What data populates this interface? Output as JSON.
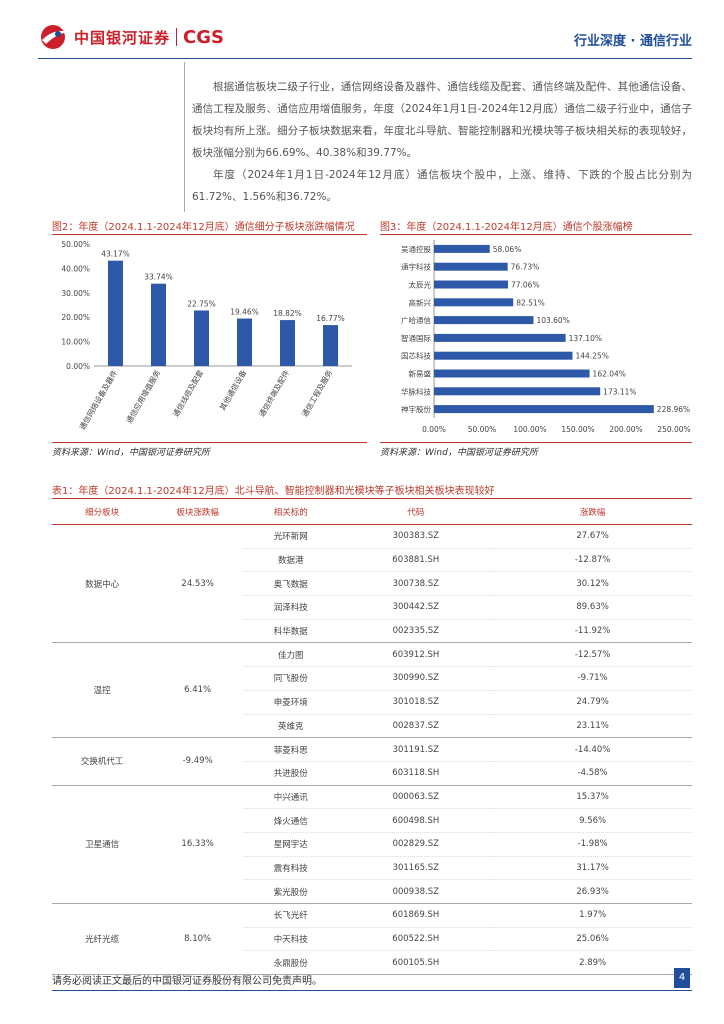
{
  "header": {
    "logo_cn": "中国银河证券",
    "logo_en": "CGS",
    "section": "行业深度 · 通信行业"
  },
  "paragraphs": [
    "根据通信板块二级子行业，通信网络设备及器件、通信线缆及配套、通信终端及配件、其他通信设备、通信工程及服务、通信应用增值服务，年度（2024年1月1日-2024年12月底）通信二级子行业中，通信子板块均有所上涨。细分子板块数据来看，年度北斗导航、智能控制器和光模块等子板块相关标的表现较好，板块涨幅分别为66.69%、40.38%和39.77%。",
    "年度（2024年1月1日-2024年12月底）通信板块个股中，上涨、维持、下跌的个股占比分别为61.72%、1.56%和36.72%。"
  ],
  "figure2": {
    "title": "图2：年度（2024.1.1-2024年12月底）通信细分子板块涨跌幅情况",
    "source": "资料来源：Wind，中国银河证券研究所"
  },
  "figure3": {
    "title": "图3：年度（2024.1.1-2024年12月底）通信个股涨幅榜",
    "source": "资料来源：Wind，中国银河证券研究所"
  },
  "chart_data": [
    {
      "type": "bar",
      "categories": [
        "通信网络设备及器件",
        "通信应用增值服务",
        "通信线缆及配套",
        "其他通信设备",
        "通信终端及配件",
        "通信工程及服务"
      ],
      "values": [
        43.17,
        33.74,
        22.75,
        19.46,
        18.82,
        16.77
      ],
      "value_labels": [
        "43.17%",
        "33.74%",
        "22.75%",
        "19.46%",
        "18.82%",
        "16.77%"
      ],
      "yticks": [
        "0.00%",
        "10.00%",
        "20.00%",
        "30.00%",
        "40.00%",
        "50.00%"
      ],
      "ylim": [
        0,
        50
      ],
      "color": "#2e59a8"
    },
    {
      "type": "bar",
      "orientation": "horizontal",
      "categories": [
        "吴通控股",
        "通宇科技",
        "太辰光",
        "高新兴",
        "广哈通信",
        "智通国际",
        "国芯科技",
        "新易盛",
        "华脉科技",
        "神宇股份"
      ],
      "values": [
        58.06,
        76.73,
        77.06,
        82.51,
        103.6,
        137.1,
        144.25,
        162.04,
        173.11,
        228.96
      ],
      "value_labels": [
        "58.06%",
        "76.73%",
        "77.06%",
        "82.51%",
        "103.60%",
        "137.10%",
        "144.25%",
        "162.04%",
        "173.11%",
        "228.96%"
      ],
      "xticks": [
        "0.00%",
        "50.00%",
        "100.00%",
        "150.00%",
        "200.00%",
        "250.00%"
      ],
      "xlim": [
        0,
        250
      ],
      "color": "#2e59a8"
    }
  ],
  "table": {
    "title": "表1：年度（2024.1.1-2024年12月底）北斗导航、智能控制器和光模块等子板块相关板块表现较好",
    "headers": [
      "细分板块",
      "板块涨跌幅",
      "相关标的",
      "代码",
      "涨跌幅"
    ],
    "groups": [
      {
        "name": "数据中心",
        "change": "24.53%",
        "rows": [
          [
            "光环新网",
            "300383.SZ",
            "27.67%"
          ],
          [
            "数据港",
            "603881.SH",
            "-12.87%"
          ],
          [
            "奥飞数据",
            "300738.SZ",
            "30.12%"
          ],
          [
            "润泽科技",
            "300442.SZ",
            "89.63%"
          ],
          [
            "科华数据",
            "002335.SZ",
            "-11.92%"
          ]
        ]
      },
      {
        "name": "温控",
        "change": "6.41%",
        "rows": [
          [
            "佳力图",
            "603912.SH",
            "-12.57%"
          ],
          [
            "同飞股份",
            "300990.SZ",
            "-9.71%"
          ],
          [
            "申菱环境",
            "301018.SZ",
            "24.79%"
          ],
          [
            "英维克",
            "002837.SZ",
            "23.11%"
          ]
        ]
      },
      {
        "name": "交换机代工",
        "change": "-9.49%",
        "rows": [
          [
            "菲菱科思",
            "301191.SZ",
            "-14.40%"
          ],
          [
            "共进股份",
            "603118.SH",
            "-4.58%"
          ]
        ]
      },
      {
        "name": "卫星通信",
        "change": "16.33%",
        "rows": [
          [
            "中兴通讯",
            "000063.SZ",
            "15.37%"
          ],
          [
            "烽火通信",
            "600498.SH",
            "9.56%"
          ],
          [
            "星网宇达",
            "002829.SZ",
            "-1.98%"
          ],
          [
            "震有科技",
            "301165.SZ",
            "31.17%"
          ],
          [
            "紫光股份",
            "000938.SZ",
            "26.93%"
          ]
        ]
      },
      {
        "name": "光纤光缆",
        "change": "8.10%",
        "rows": [
          [
            "长飞光纤",
            "601869.SH",
            "1.97%"
          ],
          [
            "中天科技",
            "600522.SH",
            "25.06%"
          ],
          [
            "永鼎股份",
            "600105.SH",
            "2.89%"
          ]
        ]
      }
    ]
  },
  "footer": {
    "disclaimer": "请务必阅读正文最后的中国银河证券股份有限公司免责声明。",
    "page": "4"
  }
}
